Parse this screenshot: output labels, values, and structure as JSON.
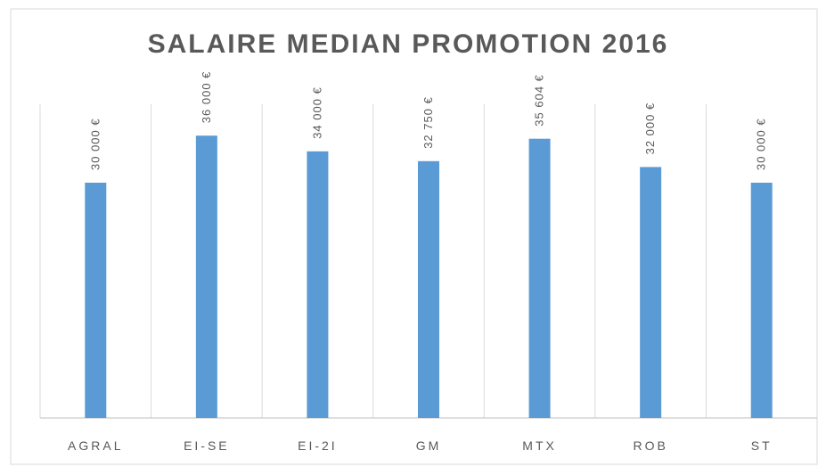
{
  "chart_data": {
    "type": "bar",
    "title": "SALAIRE MEDIAN PROMOTION 2016",
    "categories": [
      "AGRAL",
      "EI-SE",
      "EI-2I",
      "GM",
      "MTX",
      "ROB",
      "ST"
    ],
    "values": [
      30000,
      36000,
      34000,
      32750,
      35604,
      32000,
      30000
    ],
    "value_labels": [
      "30 000 €",
      "36 000 €",
      "34 000 €",
      "32 750 €",
      "35 604 €",
      "32 000 €",
      "30 000 €"
    ],
    "color": "#5b9bd5",
    "ylim": [
      0,
      40000
    ]
  }
}
